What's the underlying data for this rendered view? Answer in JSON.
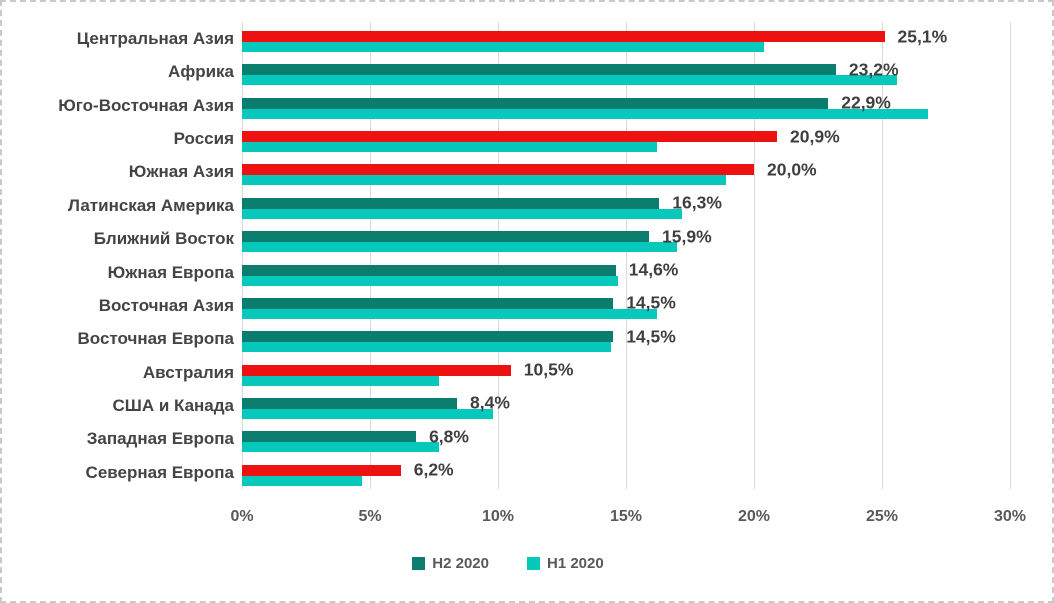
{
  "chart_data": {
    "type": "bar",
    "orientation": "horizontal",
    "title": "",
    "xlabel": "",
    "ylabel": "",
    "xlim": [
      0,
      30
    ],
    "grid": true,
    "legend_position": "bottom",
    "categories": [
      "Центральная Азия",
      "Африка",
      "Юго-Восточная Азия",
      "Россия",
      "Южная Азия",
      "Латинская Америка",
      "Ближний Восток",
      "Южная Европа",
      "Восточная Азия",
      "Восточная Европа",
      "Австралия",
      "США и Канада",
      "Западная Европа",
      "Северная Европа"
    ],
    "series": [
      {
        "name": "H2 2020",
        "values": [
          25.1,
          23.2,
          22.9,
          20.9,
          20.0,
          16.3,
          15.9,
          14.6,
          14.5,
          14.5,
          10.5,
          8.4,
          6.8,
          6.2
        ],
        "data_labels": [
          "25,1%",
          "23,2%",
          "22,9%",
          "20,9%",
          "20,0%",
          "16,3%",
          "15,9%",
          "14,6%",
          "14,5%",
          "14,5%",
          "10,5%",
          "8,4%",
          "6,8%",
          "6,2%"
        ],
        "default_color": "#0A7D6E",
        "bar_colors": [
          "#ED1111",
          "#0A7D6E",
          "#0A7D6E",
          "#ED1111",
          "#ED1111",
          "#0A7D6E",
          "#0A7D6E",
          "#0A7D6E",
          "#0A7D6E",
          "#0A7D6E",
          "#ED1111",
          "#0A7D6E",
          "#0A7D6E",
          "#ED1111"
        ]
      },
      {
        "name": "H1 2020",
        "values": [
          20.4,
          25.6,
          26.8,
          16.2,
          18.9,
          17.2,
          17.0,
          14.7,
          16.2,
          14.4,
          7.7,
          9.8,
          7.7,
          4.7
        ],
        "default_color": "#06C9BC"
      }
    ],
    "x_ticks": [
      {
        "label": "0%",
        "value": 0
      },
      {
        "label": "5%",
        "value": 5
      },
      {
        "label": "10%",
        "value": 10
      },
      {
        "label": "15%",
        "value": 15
      },
      {
        "label": "20%",
        "value": 20
      },
      {
        "label": "25%",
        "value": 25
      },
      {
        "label": "30%",
        "value": 30
      }
    ],
    "legend": [
      {
        "label": "H2 2020",
        "color": "#0A7D6E"
      },
      {
        "label": "H1 2020",
        "color": "#06C9BC"
      }
    ]
  },
  "colors": {
    "highlight_red": "#ED1111",
    "series_h2_teal": "#0A7D6E",
    "series_h1_cyan": "#06C9BC",
    "gridline": "#D9D9D9",
    "chart_border": "#C9C9C9",
    "category_text": "#444444",
    "tick_text": "#595959"
  }
}
